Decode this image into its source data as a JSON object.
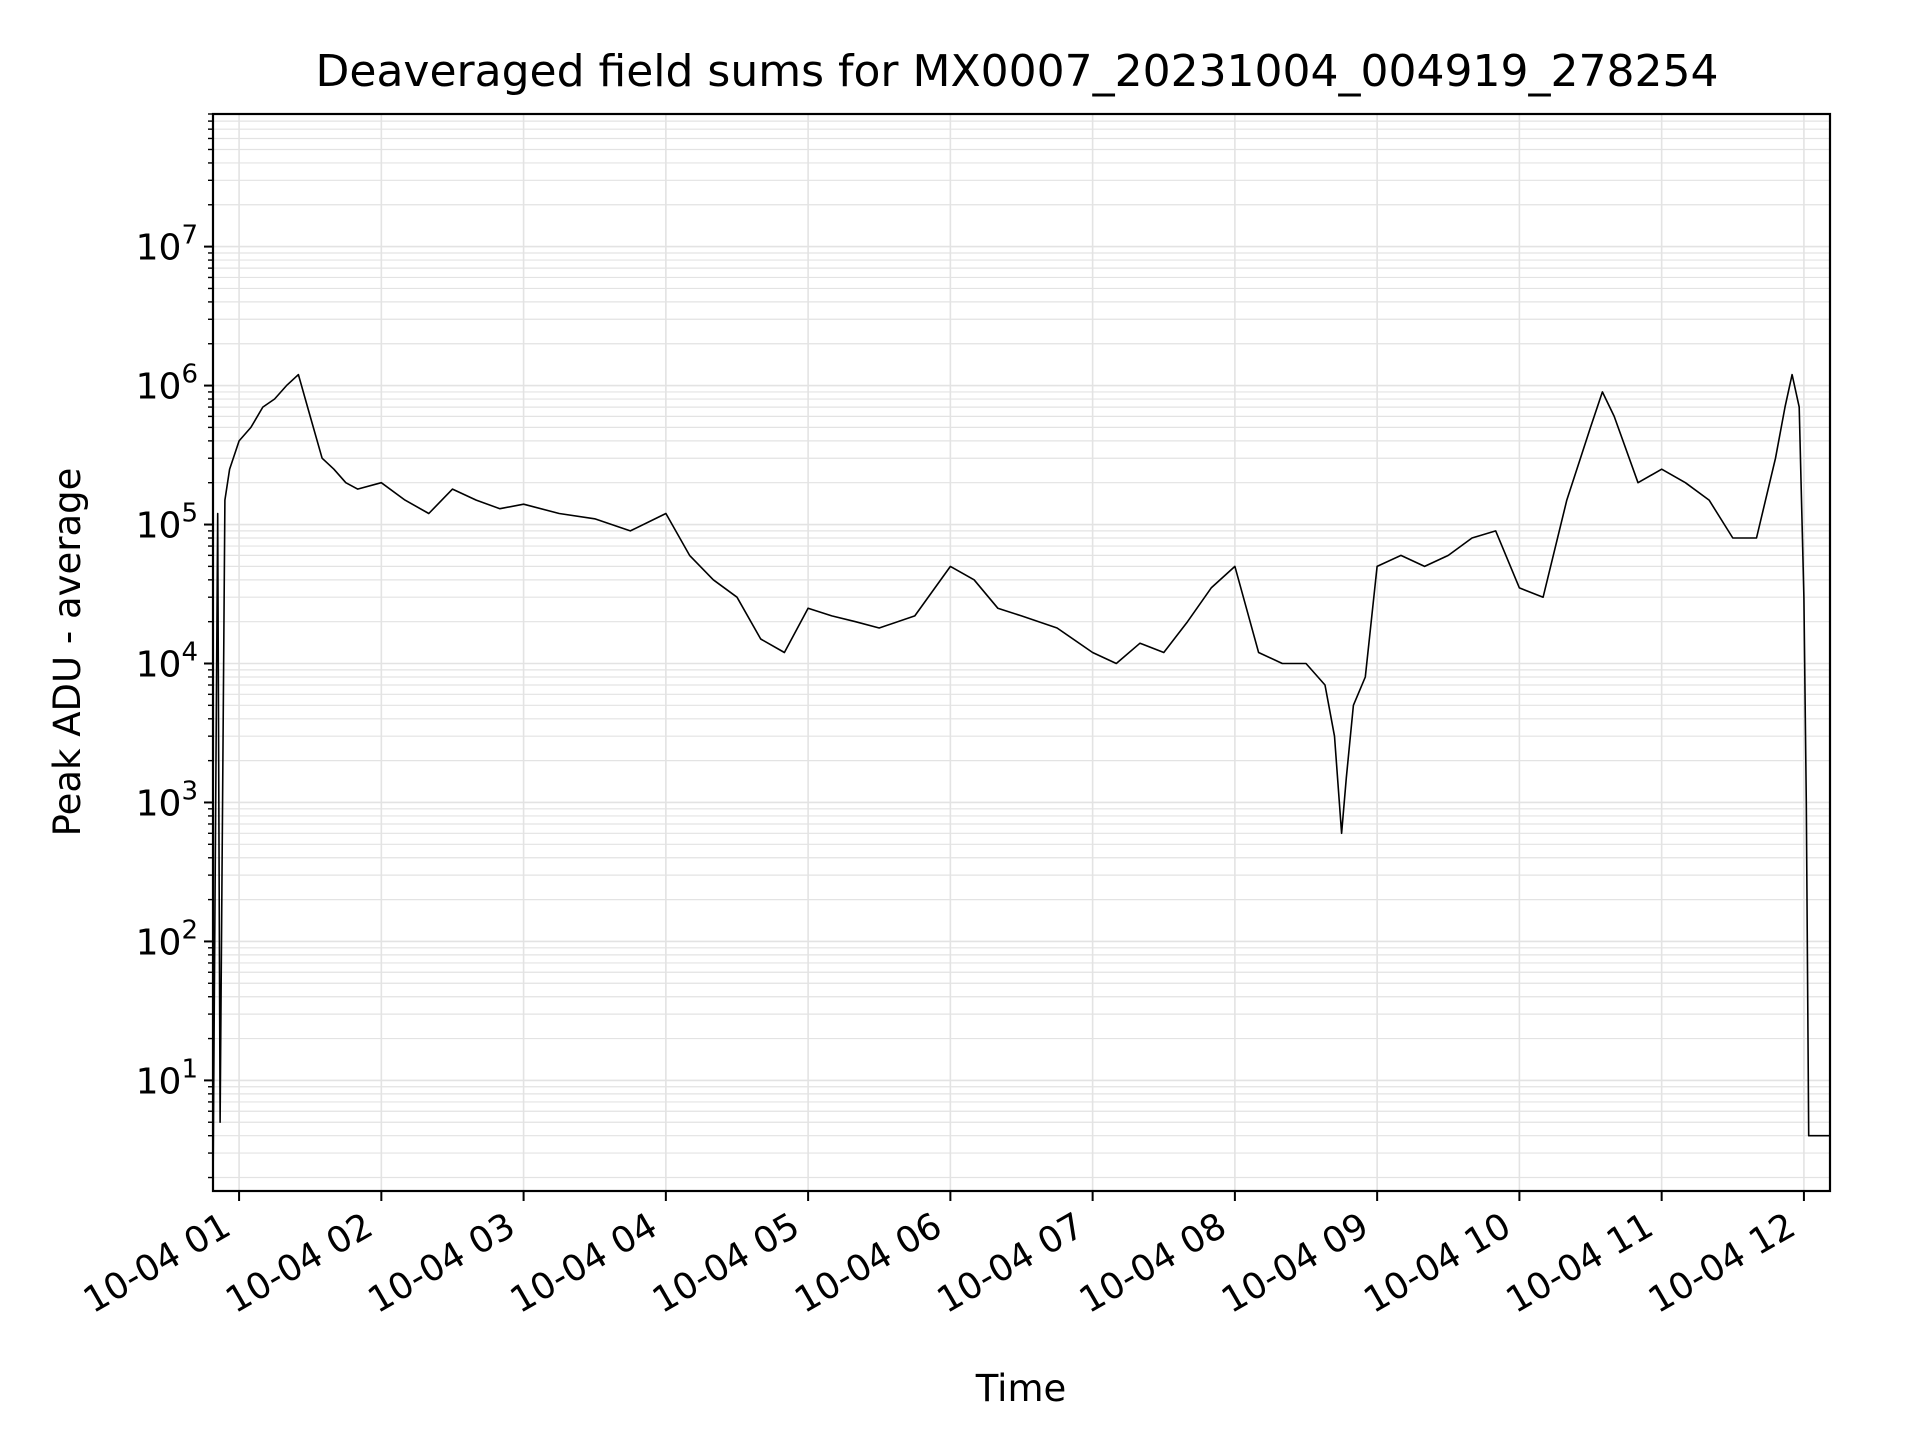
{
  "chart_data": {
    "type": "line",
    "title": "Deaveraged field sums for MX0007_20231004_004919_278254",
    "xlabel": "Time",
    "ylabel": "Peak ADU - average",
    "y_scale": "log",
    "ylim": [
      1.6,
      90000000
    ],
    "xlim": [
      "2023-10-04 00:49",
      "2023-10-04 12:11"
    ],
    "grid": true,
    "line_color": "#000000",
    "x_ticks": [
      "10-04 01",
      "10-04 02",
      "10-04 03",
      "10-04 04",
      "10-04 05",
      "10-04 06",
      "10-04 07",
      "10-04 08",
      "10-04 09",
      "10-04 10",
      "10-04 11",
      "10-04 12"
    ],
    "y_ticks": [
      {
        "value": 10,
        "base": "10",
        "exp": "1"
      },
      {
        "value": 100,
        "base": "10",
        "exp": "2"
      },
      {
        "value": 1000,
        "base": "10",
        "exp": "3"
      },
      {
        "value": 10000,
        "base": "10",
        "exp": "4"
      },
      {
        "value": 100000,
        "base": "10",
        "exp": "5"
      },
      {
        "value": 1000000,
        "base": "10",
        "exp": "6"
      },
      {
        "value": 10000000,
        "base": "10",
        "exp": "7"
      }
    ],
    "series": [
      {
        "x": [
          "2023-10-04 00:49",
          "2023-10-04 00:51",
          "2023-10-04 00:52",
          "2023-10-04 00:54",
          "2023-10-04 00:56",
          "2023-10-04 01:00",
          "2023-10-04 01:05",
          "2023-10-04 01:10",
          "2023-10-04 01:15",
          "2023-10-04 01:20",
          "2023-10-04 01:25",
          "2023-10-04 01:30",
          "2023-10-04 01:35",
          "2023-10-04 01:40",
          "2023-10-04 01:45",
          "2023-10-04 01:50",
          "2023-10-04 02:00",
          "2023-10-04 02:10",
          "2023-10-04 02:20",
          "2023-10-04 02:30",
          "2023-10-04 02:40",
          "2023-10-04 02:50",
          "2023-10-04 03:00",
          "2023-10-04 03:15",
          "2023-10-04 03:30",
          "2023-10-04 03:45",
          "2023-10-04 04:00",
          "2023-10-04 04:10",
          "2023-10-04 04:20",
          "2023-10-04 04:30",
          "2023-10-04 04:40",
          "2023-10-04 04:50",
          "2023-10-04 05:00",
          "2023-10-04 05:10",
          "2023-10-04 05:20",
          "2023-10-04 05:30",
          "2023-10-04 05:45",
          "2023-10-04 06:00",
          "2023-10-04 06:10",
          "2023-10-04 06:20",
          "2023-10-04 06:30",
          "2023-10-04 06:45",
          "2023-10-04 07:00",
          "2023-10-04 07:10",
          "2023-10-04 07:20",
          "2023-10-04 07:30",
          "2023-10-04 07:40",
          "2023-10-04 07:50",
          "2023-10-04 08:00",
          "2023-10-04 08:10",
          "2023-10-04 08:20",
          "2023-10-04 08:30",
          "2023-10-04 08:38",
          "2023-10-04 08:42",
          "2023-10-04 08:45",
          "2023-10-04 08:47",
          "2023-10-04 08:50",
          "2023-10-04 08:55",
          "2023-10-04 09:00",
          "2023-10-04 09:10",
          "2023-10-04 09:20",
          "2023-10-04 09:30",
          "2023-10-04 09:40",
          "2023-10-04 09:50",
          "2023-10-04 10:00",
          "2023-10-04 10:10",
          "2023-10-04 10:20",
          "2023-10-04 10:30",
          "2023-10-04 10:35",
          "2023-10-04 10:40",
          "2023-10-04 10:50",
          "2023-10-04 11:00",
          "2023-10-04 11:10",
          "2023-10-04 11:20",
          "2023-10-04 11:30",
          "2023-10-04 11:40",
          "2023-10-04 11:48",
          "2023-10-04 11:52",
          "2023-10-04 11:55",
          "2023-10-04 11:58",
          "2023-10-04 12:00",
          "2023-10-04 12:01",
          "2023-10-04 12:02",
          "2023-10-04 12:11"
        ],
        "y": [
          1.6,
          120000,
          5,
          150000,
          250000,
          400000,
          500000,
          700000,
          800000,
          1000000,
          1200000,
          600000,
          300000,
          250000,
          200000,
          180000,
          200000,
          150000,
          120000,
          180000,
          150000,
          130000,
          140000,
          120000,
          110000,
          90000,
          120000,
          60000,
          40000,
          30000,
          15000,
          12000,
          25000,
          22000,
          20000,
          18000,
          22000,
          50000,
          40000,
          25000,
          22000,
          18000,
          12000,
          10000,
          14000,
          12000,
          20000,
          35000,
          50000,
          12000,
          10000,
          10000,
          7000,
          3000,
          600,
          1500,
          5000,
          8000,
          50000,
          60000,
          50000,
          60000,
          80000,
          90000,
          35000,
          30000,
          150000,
          500000,
          900000,
          600000,
          200000,
          250000,
          200000,
          150000,
          80000,
          80000,
          300000,
          700000,
          1200000,
          700000,
          30000,
          1000,
          4,
          4
        ]
      }
    ]
  }
}
